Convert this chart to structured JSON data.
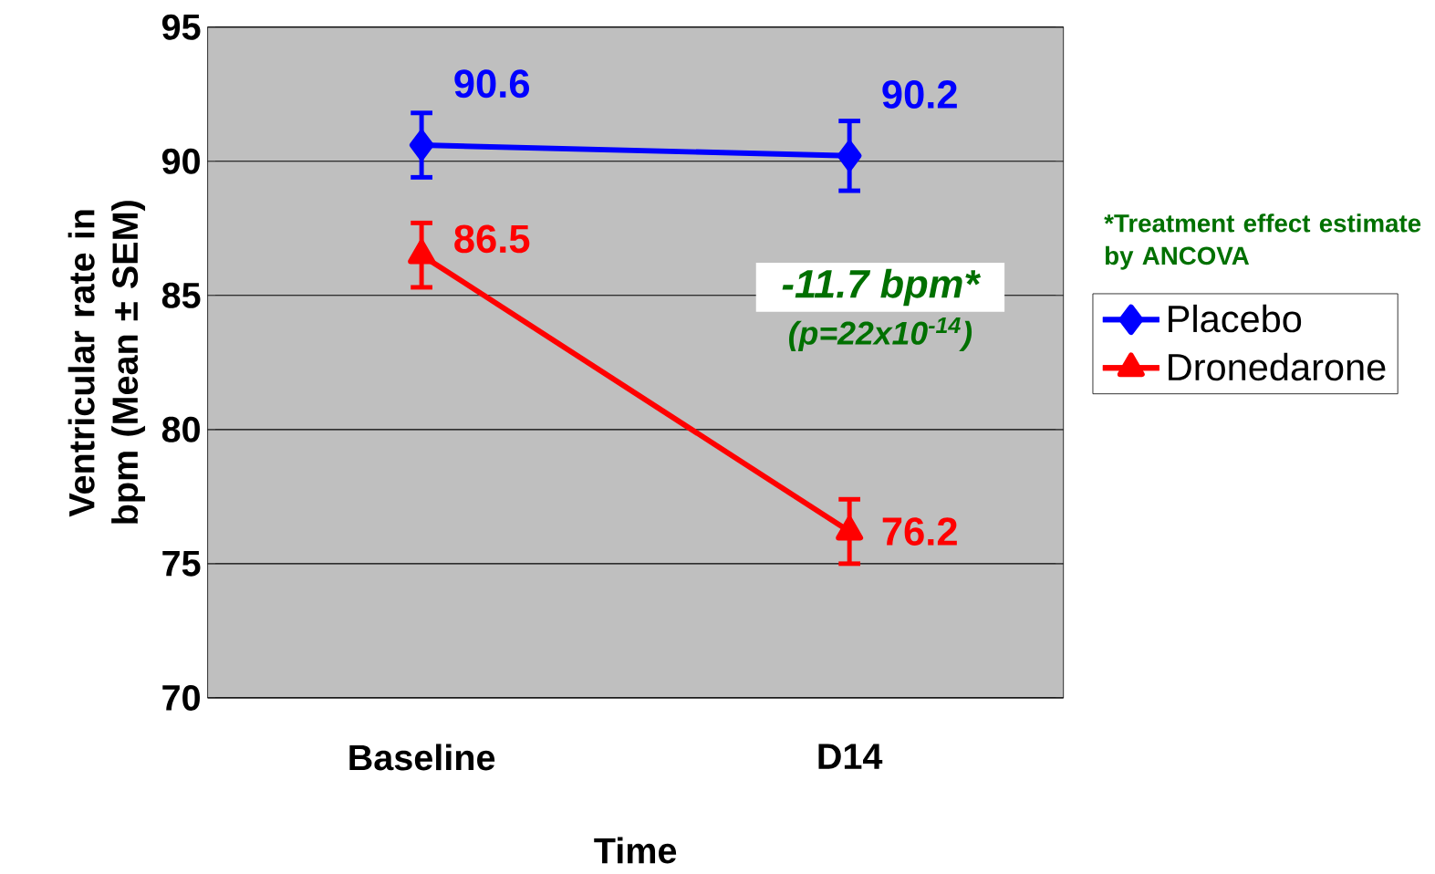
{
  "chart_data": {
    "type": "line",
    "xlabel": "Time",
    "ylabel": "Ventricular rate in bpm (Mean ± SEM)",
    "categories": [
      "Baseline",
      "D14"
    ],
    "series": [
      {
        "name": "Placebo",
        "color": "#0000ff",
        "marker": "diamond",
        "values": [
          90.6,
          90.2
        ],
        "errors": [
          1.2,
          1.3
        ]
      },
      {
        "name": "Dronedarone",
        "color": "#ff0000",
        "marker": "triangle",
        "values": [
          86.5,
          76.2
        ],
        "errors": [
          1.2,
          1.2
        ]
      }
    ],
    "ylim": [
      70,
      95
    ],
    "yticks": [
      70,
      75,
      80,
      85,
      90,
      95
    ],
    "grid": "y",
    "legend": "right",
    "data_labels": true,
    "annotations": [
      "-11.7 bpm*",
      "(p=22x10$^{-14}$)",
      "*Treatment effect estimate by ANCOVA"
    ]
  }
}
